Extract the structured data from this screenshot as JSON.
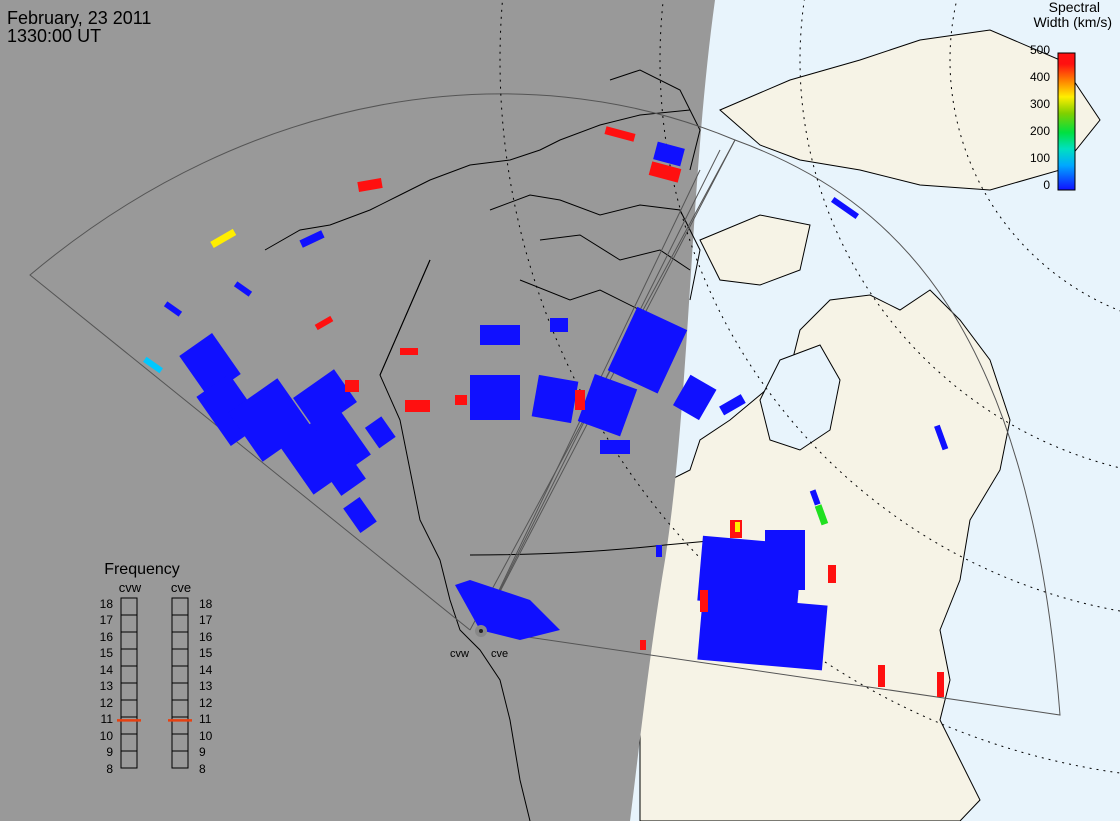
{
  "header": {
    "date": "February, 23 2011",
    "time": "1330:00 UT"
  },
  "colorbar": {
    "title_line1": "Spectral",
    "title_line2": "Width (km/s)",
    "ticks": [
      "500",
      "400",
      "300",
      "200",
      "100",
      "0"
    ],
    "colors": [
      "#1010ff",
      "#00c8ff",
      "#00e060",
      "#40d000",
      "#ffff00",
      "#ff8000",
      "#ff1010"
    ]
  },
  "frequency_panel": {
    "title": "Frequency",
    "radars": [
      "cvw",
      "cve"
    ],
    "ticks": [
      "18",
      "17",
      "16",
      "15",
      "14",
      "13",
      "12",
      "11",
      "10",
      "9",
      "8"
    ],
    "cvw_mhz": 10.8,
    "cve_mhz": 10.8,
    "marker_color": "#e84010"
  },
  "radar_sites": {
    "west_label": "cvw",
    "east_label": "cve"
  },
  "map_colors": {
    "night": "#999999",
    "day_land": "#f6f3e6",
    "ocean": "#e8f4fc",
    "scatter_main": "#1010ff",
    "scatter_wide": "#ff1010",
    "scatter_mid": "#00c8ff",
    "scatter_yellow": "#ffee00",
    "scatter_green": "#20e020"
  }
}
